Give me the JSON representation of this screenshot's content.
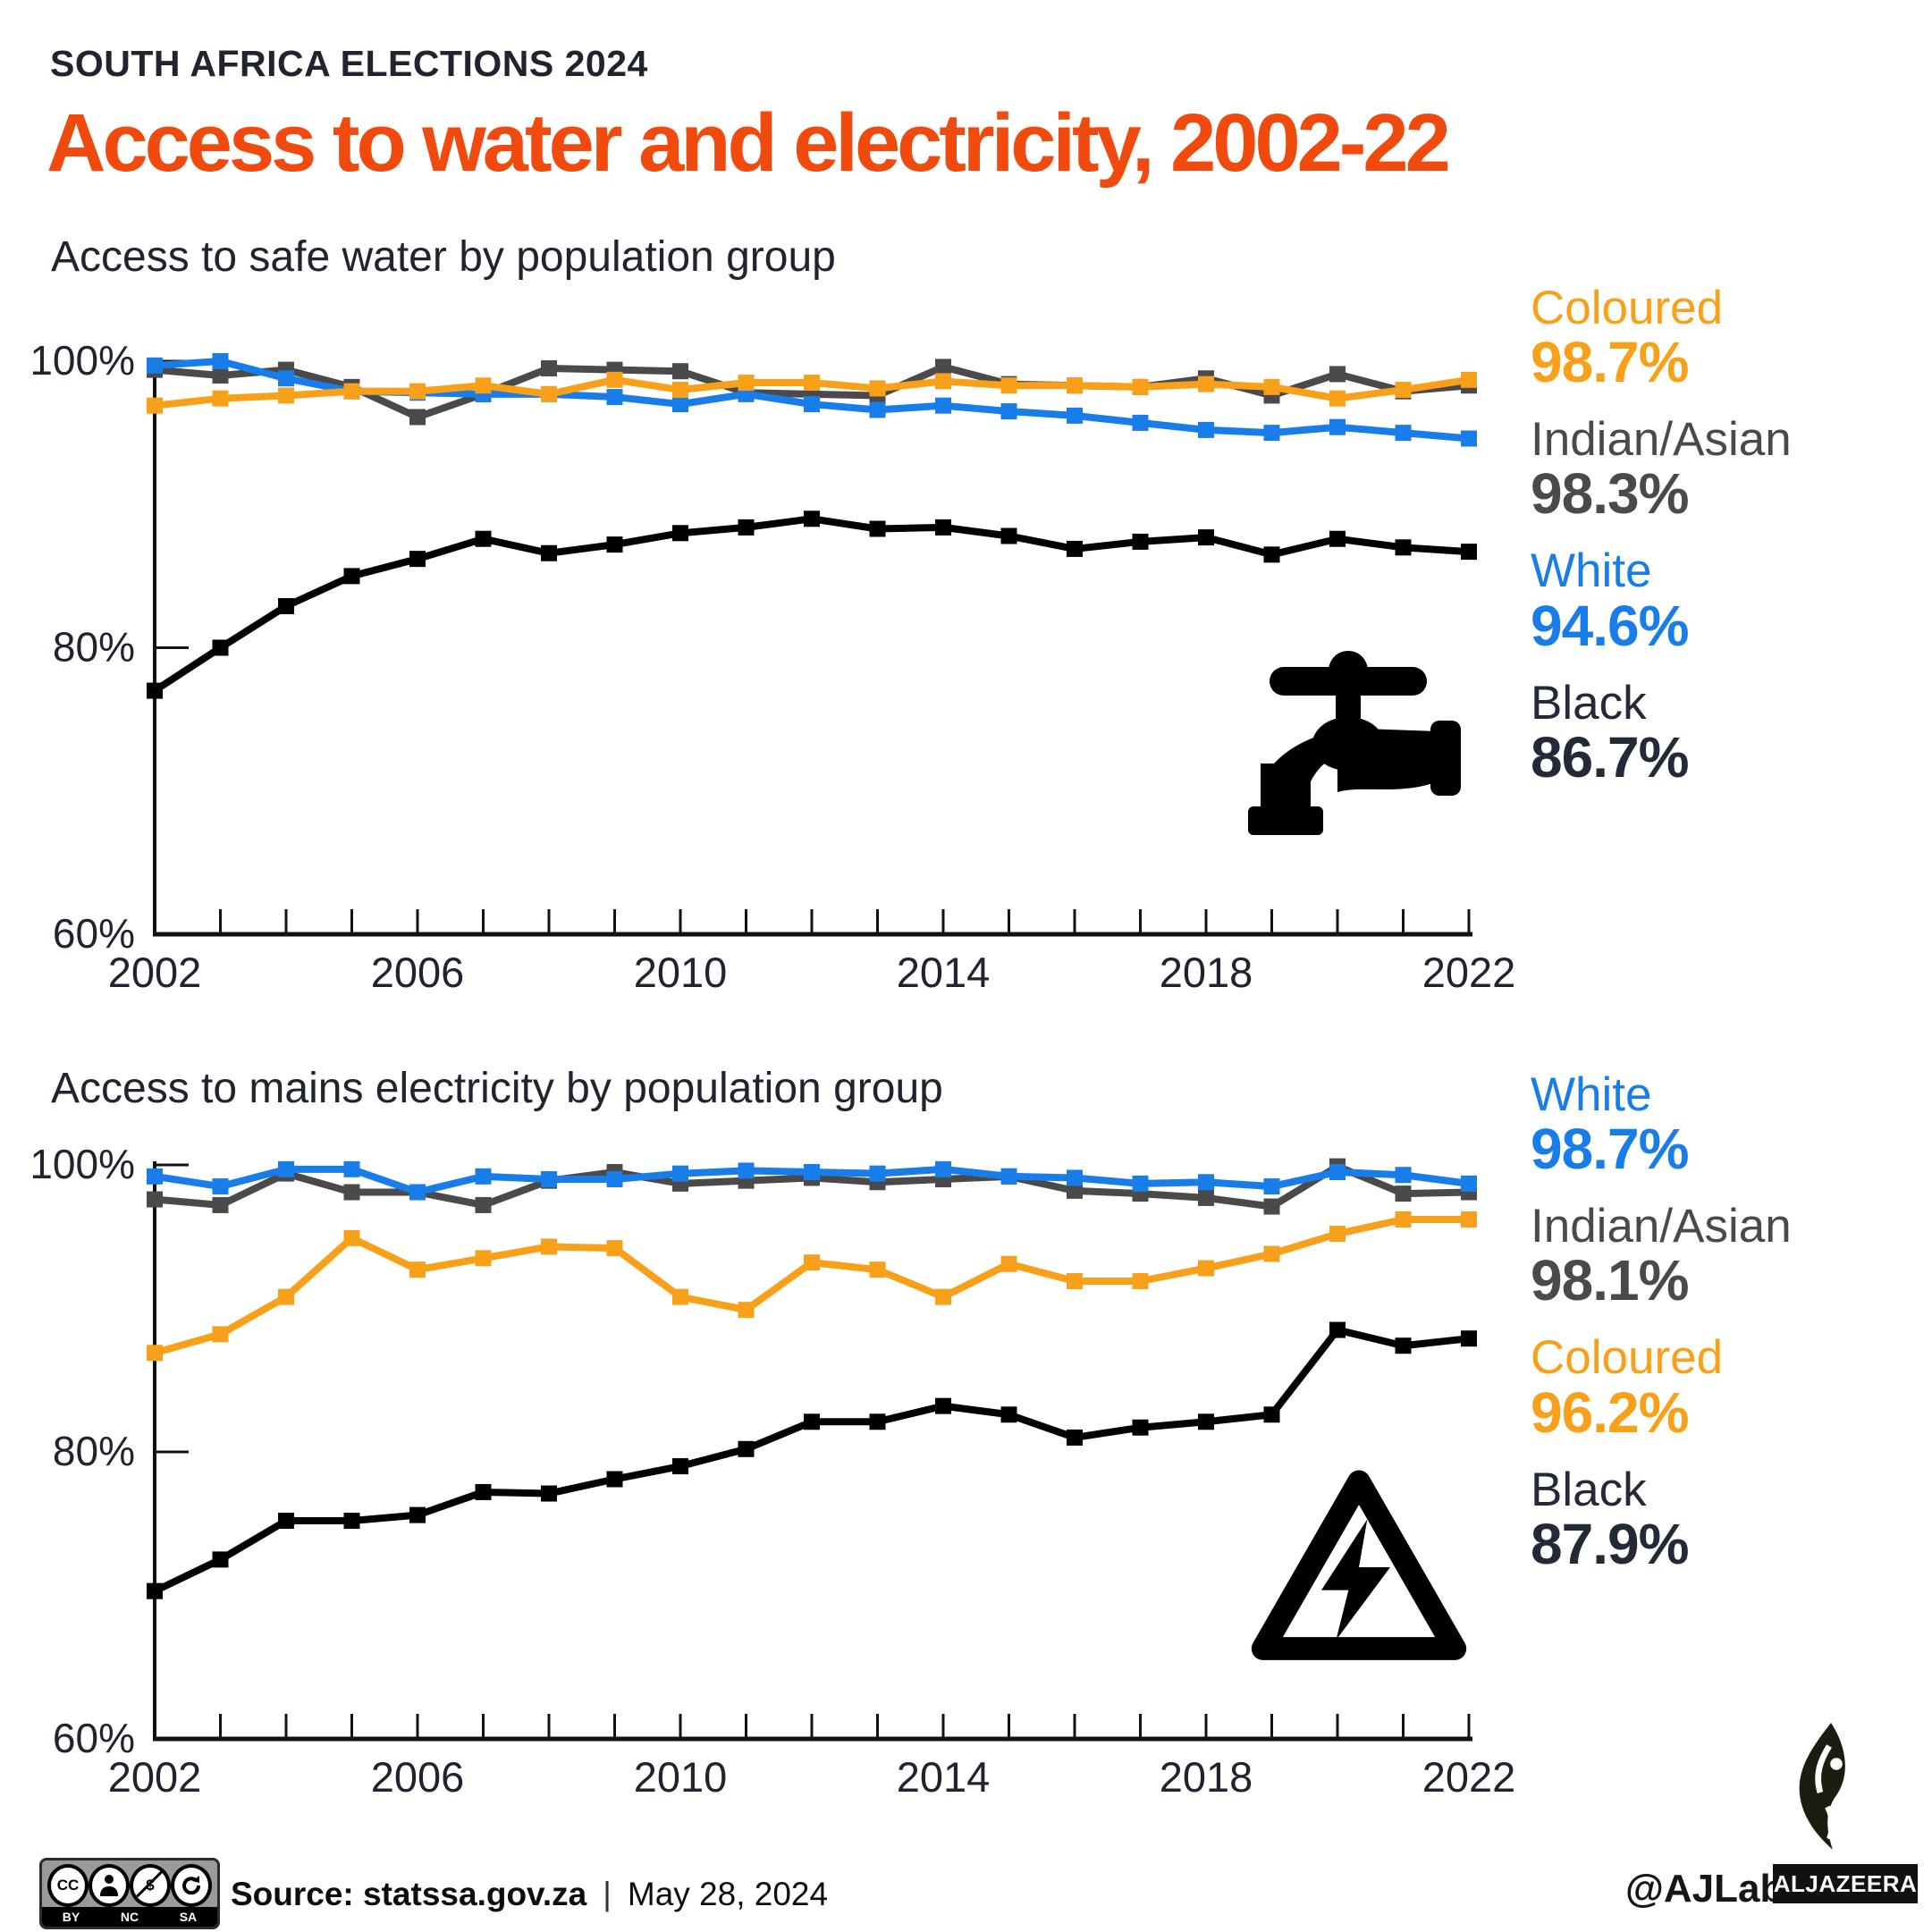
{
  "header": {
    "kicker": "SOUTH AFRICA ELECTIONS 2024",
    "title": "Access to water and electricity, 2002-22"
  },
  "chart_data": [
    {
      "type": "line",
      "title": "Access to safe water by population group",
      "x": [
        2002,
        2003,
        2004,
        2005,
        2006,
        2007,
        2008,
        2009,
        2010,
        2011,
        2012,
        2013,
        2014,
        2015,
        2016,
        2017,
        2018,
        2019,
        2020,
        2021,
        2022
      ],
      "x_tick_labels": [
        "2002",
        "2006",
        "2010",
        "2014",
        "2018",
        "2022"
      ],
      "ylim": [
        60,
        100
      ],
      "y_ticks": [
        {
          "value": 100,
          "label": "100%"
        },
        {
          "value": 80,
          "label": "80%"
        },
        {
          "value": 60,
          "label": "60%"
        }
      ],
      "grid": "off",
      "legend_position": "right",
      "icon": "tap-icon",
      "series": [
        {
          "name": "Indian/Asian",
          "color": "#4A4A4A",
          "values": [
            99.4,
            99.0,
            99.4,
            98.2,
            96.1,
            97.7,
            99.5,
            99.4,
            99.3,
            97.8,
            97.7,
            97.6,
            99.6,
            98.4,
            98.3,
            98.2,
            98.8,
            97.6,
            99.1,
            97.9,
            98.3
          ]
        },
        {
          "name": "White",
          "color": "#187CE9",
          "values": [
            99.7,
            100.0,
            98.8,
            97.9,
            97.8,
            97.7,
            97.7,
            97.5,
            97.0,
            97.7,
            97.0,
            96.6,
            96.9,
            96.5,
            96.2,
            95.7,
            95.2,
            95.0,
            95.4,
            95.0,
            94.6
          ]
        },
        {
          "name": "Coloured",
          "color": "#F9A01B",
          "values": [
            96.9,
            97.4,
            97.6,
            97.9,
            97.9,
            98.3,
            97.7,
            98.7,
            98.0,
            98.5,
            98.5,
            98.1,
            98.6,
            98.3,
            98.3,
            98.2,
            98.4,
            98.2,
            97.4,
            98.0,
            98.7
          ]
        },
        {
          "name": "Black",
          "color": "#000000",
          "values": [
            77.0,
            80.0,
            82.9,
            85.0,
            86.2,
            87.6,
            86.6,
            87.2,
            88.0,
            88.4,
            89.0,
            88.3,
            88.4,
            87.8,
            86.9,
            87.4,
            87.7,
            86.5,
            87.6,
            87.0,
            86.7
          ]
        }
      ],
      "legend": [
        {
          "label": "Coloured",
          "value": "98.7%",
          "color": "#F9A01B"
        },
        {
          "label": "Indian/Asian",
          "value": "98.3%",
          "color": "#4A4A4A"
        },
        {
          "label": "White",
          "value": "94.6%",
          "color": "#187CE9"
        },
        {
          "label": "Black",
          "value": "86.7%",
          "color": "#232936"
        }
      ]
    },
    {
      "type": "line",
      "title": "Access to mains electricity by population group",
      "x": [
        2002,
        2003,
        2004,
        2005,
        2006,
        2007,
        2008,
        2009,
        2010,
        2011,
        2012,
        2013,
        2014,
        2015,
        2016,
        2017,
        2018,
        2019,
        2020,
        2021,
        2022
      ],
      "x_tick_labels": [
        "2002",
        "2006",
        "2010",
        "2014",
        "2018",
        "2022"
      ],
      "ylim": [
        60,
        100
      ],
      "y_ticks": [
        {
          "value": 100,
          "label": "100%"
        },
        {
          "value": 80,
          "label": "80%"
        },
        {
          "value": 60,
          "label": "60%"
        }
      ],
      "grid": "off",
      "legend_position": "right",
      "icon": "electricity-warning-icon",
      "series": [
        {
          "name": "Indian/Asian",
          "color": "#4A4A4A",
          "values": [
            97.6,
            97.2,
            99.4,
            98.1,
            98.1,
            97.2,
            98.9,
            99.5,
            98.7,
            98.9,
            99.1,
            98.8,
            99.0,
            99.2,
            98.2,
            98.0,
            97.7,
            97.1,
            99.9,
            98.0,
            98.1
          ]
        },
        {
          "name": "White",
          "color": "#187CE9",
          "values": [
            99.2,
            98.5,
            99.7,
            99.7,
            98.1,
            99.2,
            99.0,
            99.0,
            99.4,
            99.6,
            99.5,
            99.4,
            99.7,
            99.2,
            99.1,
            98.7,
            98.8,
            98.5,
            99.5,
            99.3,
            98.7
          ]
        },
        {
          "name": "Coloured",
          "color": "#F9A01B",
          "values": [
            86.9,
            88.2,
            90.8,
            94.9,
            92.7,
            93.5,
            94.3,
            94.2,
            90.8,
            89.9,
            93.2,
            92.7,
            90.8,
            93.1,
            91.9,
            91.9,
            92.8,
            93.8,
            95.2,
            96.2,
            96.2
          ]
        },
        {
          "name": "Black",
          "color": "#000000",
          "values": [
            70.3,
            72.5,
            75.2,
            75.2,
            75.6,
            77.2,
            77.1,
            78.1,
            79.0,
            80.2,
            82.1,
            82.1,
            83.2,
            82.6,
            81.0,
            81.7,
            82.1,
            82.6,
            88.5,
            87.4,
            87.9
          ]
        }
      ],
      "legend": [
        {
          "label": "White",
          "value": "98.7%",
          "color": "#187CE9"
        },
        {
          "label": "Indian/Asian",
          "value": "98.1%",
          "color": "#4A4A4A"
        },
        {
          "label": "Coloured",
          "value": "96.2%",
          "color": "#F9A01B"
        },
        {
          "label": "Black",
          "value": "87.9%",
          "color": "#232936"
        }
      ]
    }
  ],
  "footer": {
    "source": "Source: statssa.gov.za",
    "separator": "|",
    "date": "May 28, 2024",
    "handle": "@AJLabs",
    "logo_text": "ALJAZEERA",
    "license_circle_text": "CC",
    "license_labels": [
      "BY",
      "NC",
      "SA"
    ]
  },
  "colors": {
    "title_accent": "#F14A0E",
    "text_dark": "#20242F",
    "orange": "#F9A01B",
    "blue": "#187CE9",
    "gray": "#4A4A4A",
    "navy": "#232936",
    "black_line": "#000000"
  }
}
